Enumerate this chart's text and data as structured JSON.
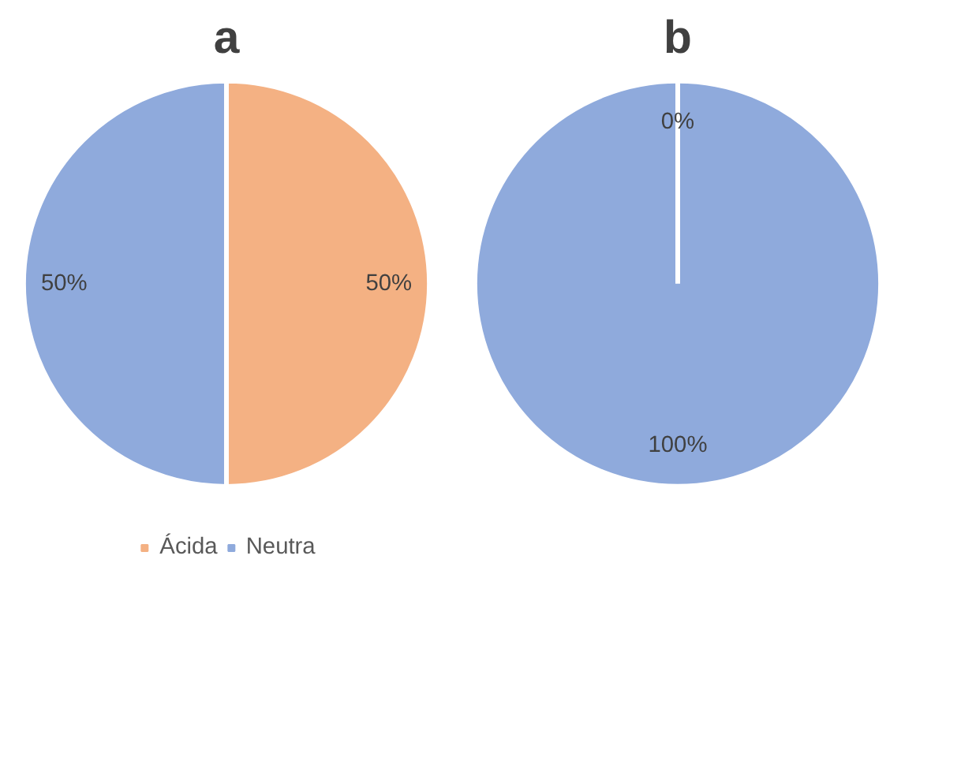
{
  "chart_data": [
    {
      "type": "pie",
      "title": "a",
      "categories": [
        "Ácida",
        "Neutra"
      ],
      "values": [
        50,
        50
      ],
      "colors": [
        "#f4b183",
        "#8faadc"
      ],
      "value_labels": [
        "50%",
        "50%"
      ],
      "legend": "bottom"
    },
    {
      "type": "pie",
      "title": "b",
      "values": [
        0,
        100
      ],
      "colors": [
        "#f4b183",
        "#8faadc"
      ],
      "value_labels": [
        "0%",
        "100%"
      ]
    }
  ]
}
